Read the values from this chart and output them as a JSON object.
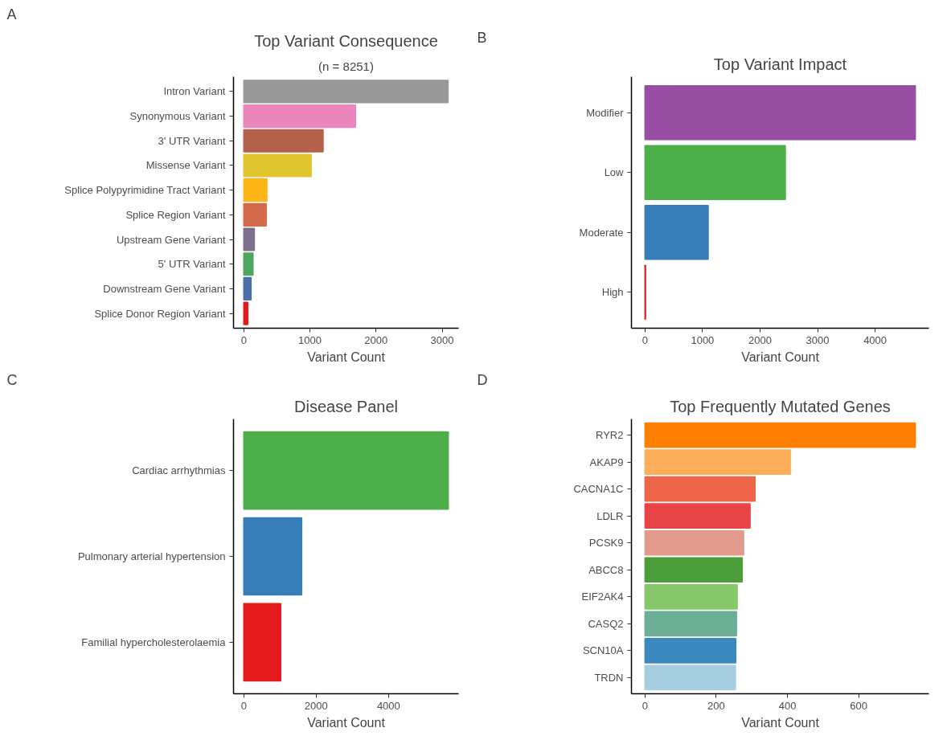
{
  "chart_data": [
    {
      "type": "bar",
      "orientation": "horizontal",
      "annotations": [
        "A"
      ],
      "title": "Top Variant Consequence",
      "subtitle": "(n = 8251)",
      "xlabel": "Variant Count",
      "categories": [
        "Intron Variant",
        "Synonymous Variant",
        "3' UTR Variant",
        "Missense Variant",
        "Splice Polypyrimidine Tract Variant",
        "Splice Region Variant",
        "Upstream Gene Variant",
        "5' UTR Variant",
        "Downstream Gene Variant",
        "Splice Donor Region Variant"
      ],
      "values": [
        3090,
        1690,
        1200,
        1020,
        350,
        340,
        160,
        140,
        110,
        60
      ],
      "colors": [
        "#999999",
        "#ed85bd",
        "#b5604a",
        "#e0c52f",
        "#fdb516",
        "#d5694b",
        "#7d6f8a",
        "#4ea55f",
        "#4a6fa8",
        "#e31a1c"
      ],
      "xlim": [
        -155,
        3249
      ],
      "xticks": [
        0,
        1000,
        2000,
        3000
      ]
    },
    {
      "type": "bar",
      "orientation": "horizontal",
      "annotations": [
        "B"
      ],
      "title": "Top Variant Impact",
      "xlabel": "Variant Count",
      "categories": [
        "Modifier",
        "Low",
        "Moderate",
        "High"
      ],
      "values": [
        4700,
        2440,
        1100,
        10
      ],
      "colors": [
        "#984ea3",
        "#4daf4a",
        "#377eb8",
        "#e41a1c"
      ],
      "xlim": [
        -235,
        4935
      ],
      "xticks": [
        0,
        1000,
        2000,
        3000,
        4000
      ]
    },
    {
      "type": "bar",
      "orientation": "horizontal",
      "annotations": [
        "C"
      ],
      "title": "Disease Panel",
      "xlabel": "Variant Count",
      "categories": [
        "Cardiac arrhythmias",
        "Pulmonary arterial hypertension",
        "Familial hypercholesterolaemia"
      ],
      "values": [
        5650,
        1600,
        1020
      ],
      "colors": [
        "#4daf4a",
        "#377eb8",
        "#e41a1c"
      ],
      "xlim": [
        -283,
        5935
      ],
      "xticks": [
        0,
        2000,
        4000
      ]
    },
    {
      "type": "bar",
      "orientation": "horizontal",
      "annotations": [
        "D"
      ],
      "title": "Top Frequently Mutated Genes",
      "xlabel": "Variant Count",
      "categories": [
        "RYR2",
        "AKAP9",
        "CACNA1C",
        "LDLR",
        "PCSK9",
        "ABCC8",
        "EIF2AK4",
        "CASQ2",
        "SCN10A",
        "TRDN"
      ],
      "values": [
        759,
        408,
        309,
        295,
        277,
        273,
        259,
        257,
        255,
        254
      ],
      "colors": [
        "#ff7f00",
        "#fdae5b",
        "#ef6548",
        "#e84346",
        "#e3998c",
        "#4b9e3a",
        "#87c96a",
        "#6caf97",
        "#3b88be",
        "#a6cde0"
      ],
      "xlim": [
        -38,
        797
      ],
      "xticks": [
        0,
        200,
        400,
        600
      ]
    }
  ]
}
